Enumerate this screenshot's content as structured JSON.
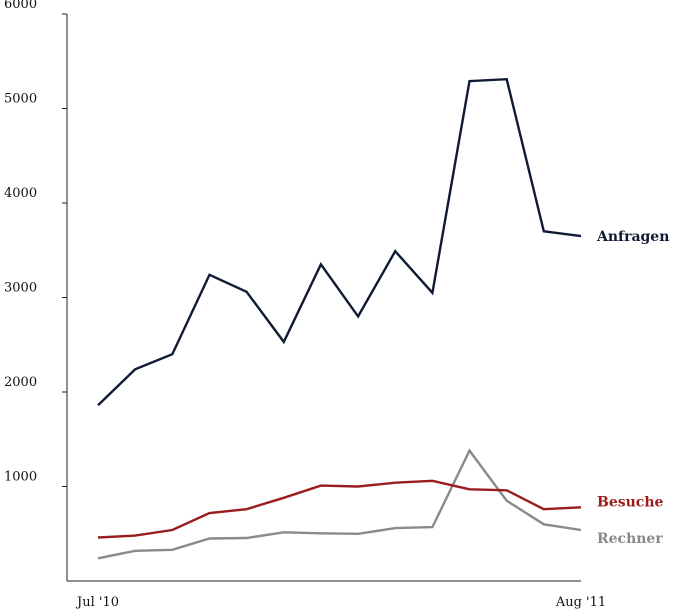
{
  "chart_data": {
    "type": "line",
    "x_tick_labels": [
      "Jul '10",
      "Aug '11"
    ],
    "y_ticks": [
      {
        "value": 1000,
        "label": "1000"
      },
      {
        "value": 2000,
        "label": "2000"
      },
      {
        "value": 3000,
        "label": "3000"
      },
      {
        "value": 4000,
        "label": "4000"
      },
      {
        "value": 5000,
        "label": "5000"
      },
      {
        "value": 6000,
        "label": "6000"
      }
    ],
    "ylim": [
      0,
      6000
    ],
    "n_points": 14,
    "grid": false,
    "legend": "inline-right",
    "series": [
      {
        "name": "Anfragen",
        "color": "#0f1a33",
        "values": [
          1860,
          2240,
          2400,
          3240,
          3060,
          2530,
          3350,
          2800,
          3490,
          3050,
          5290,
          5310,
          3700,
          3650
        ]
      },
      {
        "name": "Besuche",
        "color": "#9b1c1c",
        "values": [
          460,
          480,
          540,
          720,
          760,
          880,
          1010,
          1000,
          1040,
          1060,
          970,
          960,
          760,
          780
        ]
      },
      {
        "name": "Rechner",
        "color": "#8a8a8a",
        "values": [
          240,
          320,
          330,
          450,
          455,
          515,
          505,
          500,
          560,
          570,
          1380,
          850,
          600,
          540
        ]
      }
    ]
  }
}
